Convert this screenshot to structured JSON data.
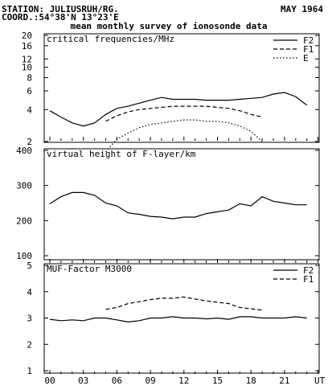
{
  "header": {
    "station": "STATION: JULIUSRUH/RG.",
    "coord": "COORD.:54°38'N 13°23'E",
    "date": "MAY 1964",
    "title": "mean monthly survey of ionosonde data"
  },
  "chart_data": [
    {
      "type": "line",
      "title": "critical frequencies/MHz",
      "scale": "log",
      "ylim": [
        1.6,
        20
      ],
      "yticks": [
        "20",
        "16",
        "12",
        "10",
        "8",
        "6",
        "4",
        "2"
      ],
      "ytick_values": [
        20,
        16,
        12,
        10,
        8,
        6,
        4,
        2
      ],
      "legend_position": "top-right",
      "series": [
        {
          "name": "F2",
          "style": "solid",
          "x": [
            0,
            1,
            2,
            3,
            4,
            5,
            6,
            7,
            8,
            9,
            10,
            11,
            12,
            13,
            14,
            15,
            16,
            17,
            18,
            19,
            20,
            21,
            22,
            23
          ],
          "values": [
            3.9,
            3.4,
            3.0,
            2.8,
            3.0,
            3.6,
            4.1,
            4.3,
            4.6,
            4.9,
            5.2,
            5.0,
            5.0,
            5.0,
            4.9,
            4.9,
            4.9,
            5.0,
            5.1,
            5.2,
            5.6,
            5.8,
            5.3,
            4.4
          ]
        },
        {
          "name": "F1",
          "style": "dashed",
          "x": [
            5,
            6,
            7,
            8,
            9,
            10,
            11,
            12,
            13,
            14,
            15,
            16,
            17,
            18,
            19
          ],
          "values": [
            3.1,
            3.5,
            3.8,
            4.0,
            4.1,
            4.2,
            4.3,
            4.3,
            4.3,
            4.3,
            4.2,
            4.1,
            3.9,
            3.6,
            3.4
          ]
        },
        {
          "name": "E",
          "style": "dotted",
          "x": [
            5,
            6,
            7,
            8,
            9,
            10,
            11,
            12,
            13,
            14,
            15,
            16,
            17,
            18,
            19
          ],
          "values": [
            1.6,
            2.1,
            2.4,
            2.7,
            2.9,
            3.0,
            3.1,
            3.2,
            3.2,
            3.1,
            3.1,
            3.0,
            2.8,
            2.5,
            2.0
          ]
        }
      ]
    },
    {
      "type": "line",
      "title": "virtual height of F-layer/km",
      "ylim": [
        100,
        400
      ],
      "yticks": [
        "400",
        "300",
        "200",
        "100"
      ],
      "ytick_values": [
        400,
        300,
        200,
        100
      ],
      "series": [
        {
          "name": "",
          "style": "solid",
          "x": [
            0,
            1,
            2,
            3,
            4,
            5,
            6,
            7,
            8,
            9,
            10,
            11,
            12,
            13,
            14,
            15,
            16,
            17,
            18,
            19,
            20,
            21,
            22,
            23
          ],
          "values": [
            248,
            268,
            280,
            280,
            272,
            250,
            242,
            222,
            218,
            212,
            210,
            205,
            210,
            210,
            220,
            225,
            230,
            248,
            242,
            268,
            255,
            250,
            245,
            245
          ]
        }
      ]
    },
    {
      "type": "line",
      "title": "MUF-Factor M3000",
      "ylim": [
        1,
        5
      ],
      "yticks": [
        "5",
        "4",
        "3",
        "2",
        "1"
      ],
      "ytick_values": [
        5,
        4,
        3,
        2,
        1
      ],
      "legend_position": "top-right",
      "series": [
        {
          "name": "F2",
          "style": "solid",
          "x": [
            0,
            1,
            2,
            3,
            4,
            5,
            6,
            7,
            8,
            9,
            10,
            11,
            12,
            13,
            14,
            15,
            16,
            17,
            18,
            19,
            20,
            21,
            22,
            23
          ],
          "values": [
            2.95,
            2.9,
            2.93,
            2.9,
            3.0,
            3.0,
            2.93,
            2.85,
            2.9,
            3.0,
            3.0,
            3.05,
            3.0,
            3.0,
            2.97,
            3.0,
            2.95,
            3.05,
            3.05,
            3.0,
            3.0,
            3.0,
            3.05,
            3.0
          ]
        },
        {
          "name": "F1",
          "style": "dashed",
          "x": [
            5,
            6,
            7,
            8,
            9,
            10,
            11,
            12,
            13,
            14,
            15,
            16,
            17,
            18,
            19
          ],
          "values": [
            3.33,
            3.4,
            3.55,
            3.62,
            3.7,
            3.75,
            3.75,
            3.8,
            3.72,
            3.65,
            3.6,
            3.55,
            3.4,
            3.35,
            3.3
          ]
        }
      ]
    }
  ],
  "xaxis": {
    "ticks": [
      "00",
      "03",
      "06",
      "09",
      "12",
      "15",
      "18",
      "21",
      "UT"
    ],
    "values": [
      0,
      3,
      6,
      9,
      12,
      15,
      18,
      21,
      24
    ]
  }
}
